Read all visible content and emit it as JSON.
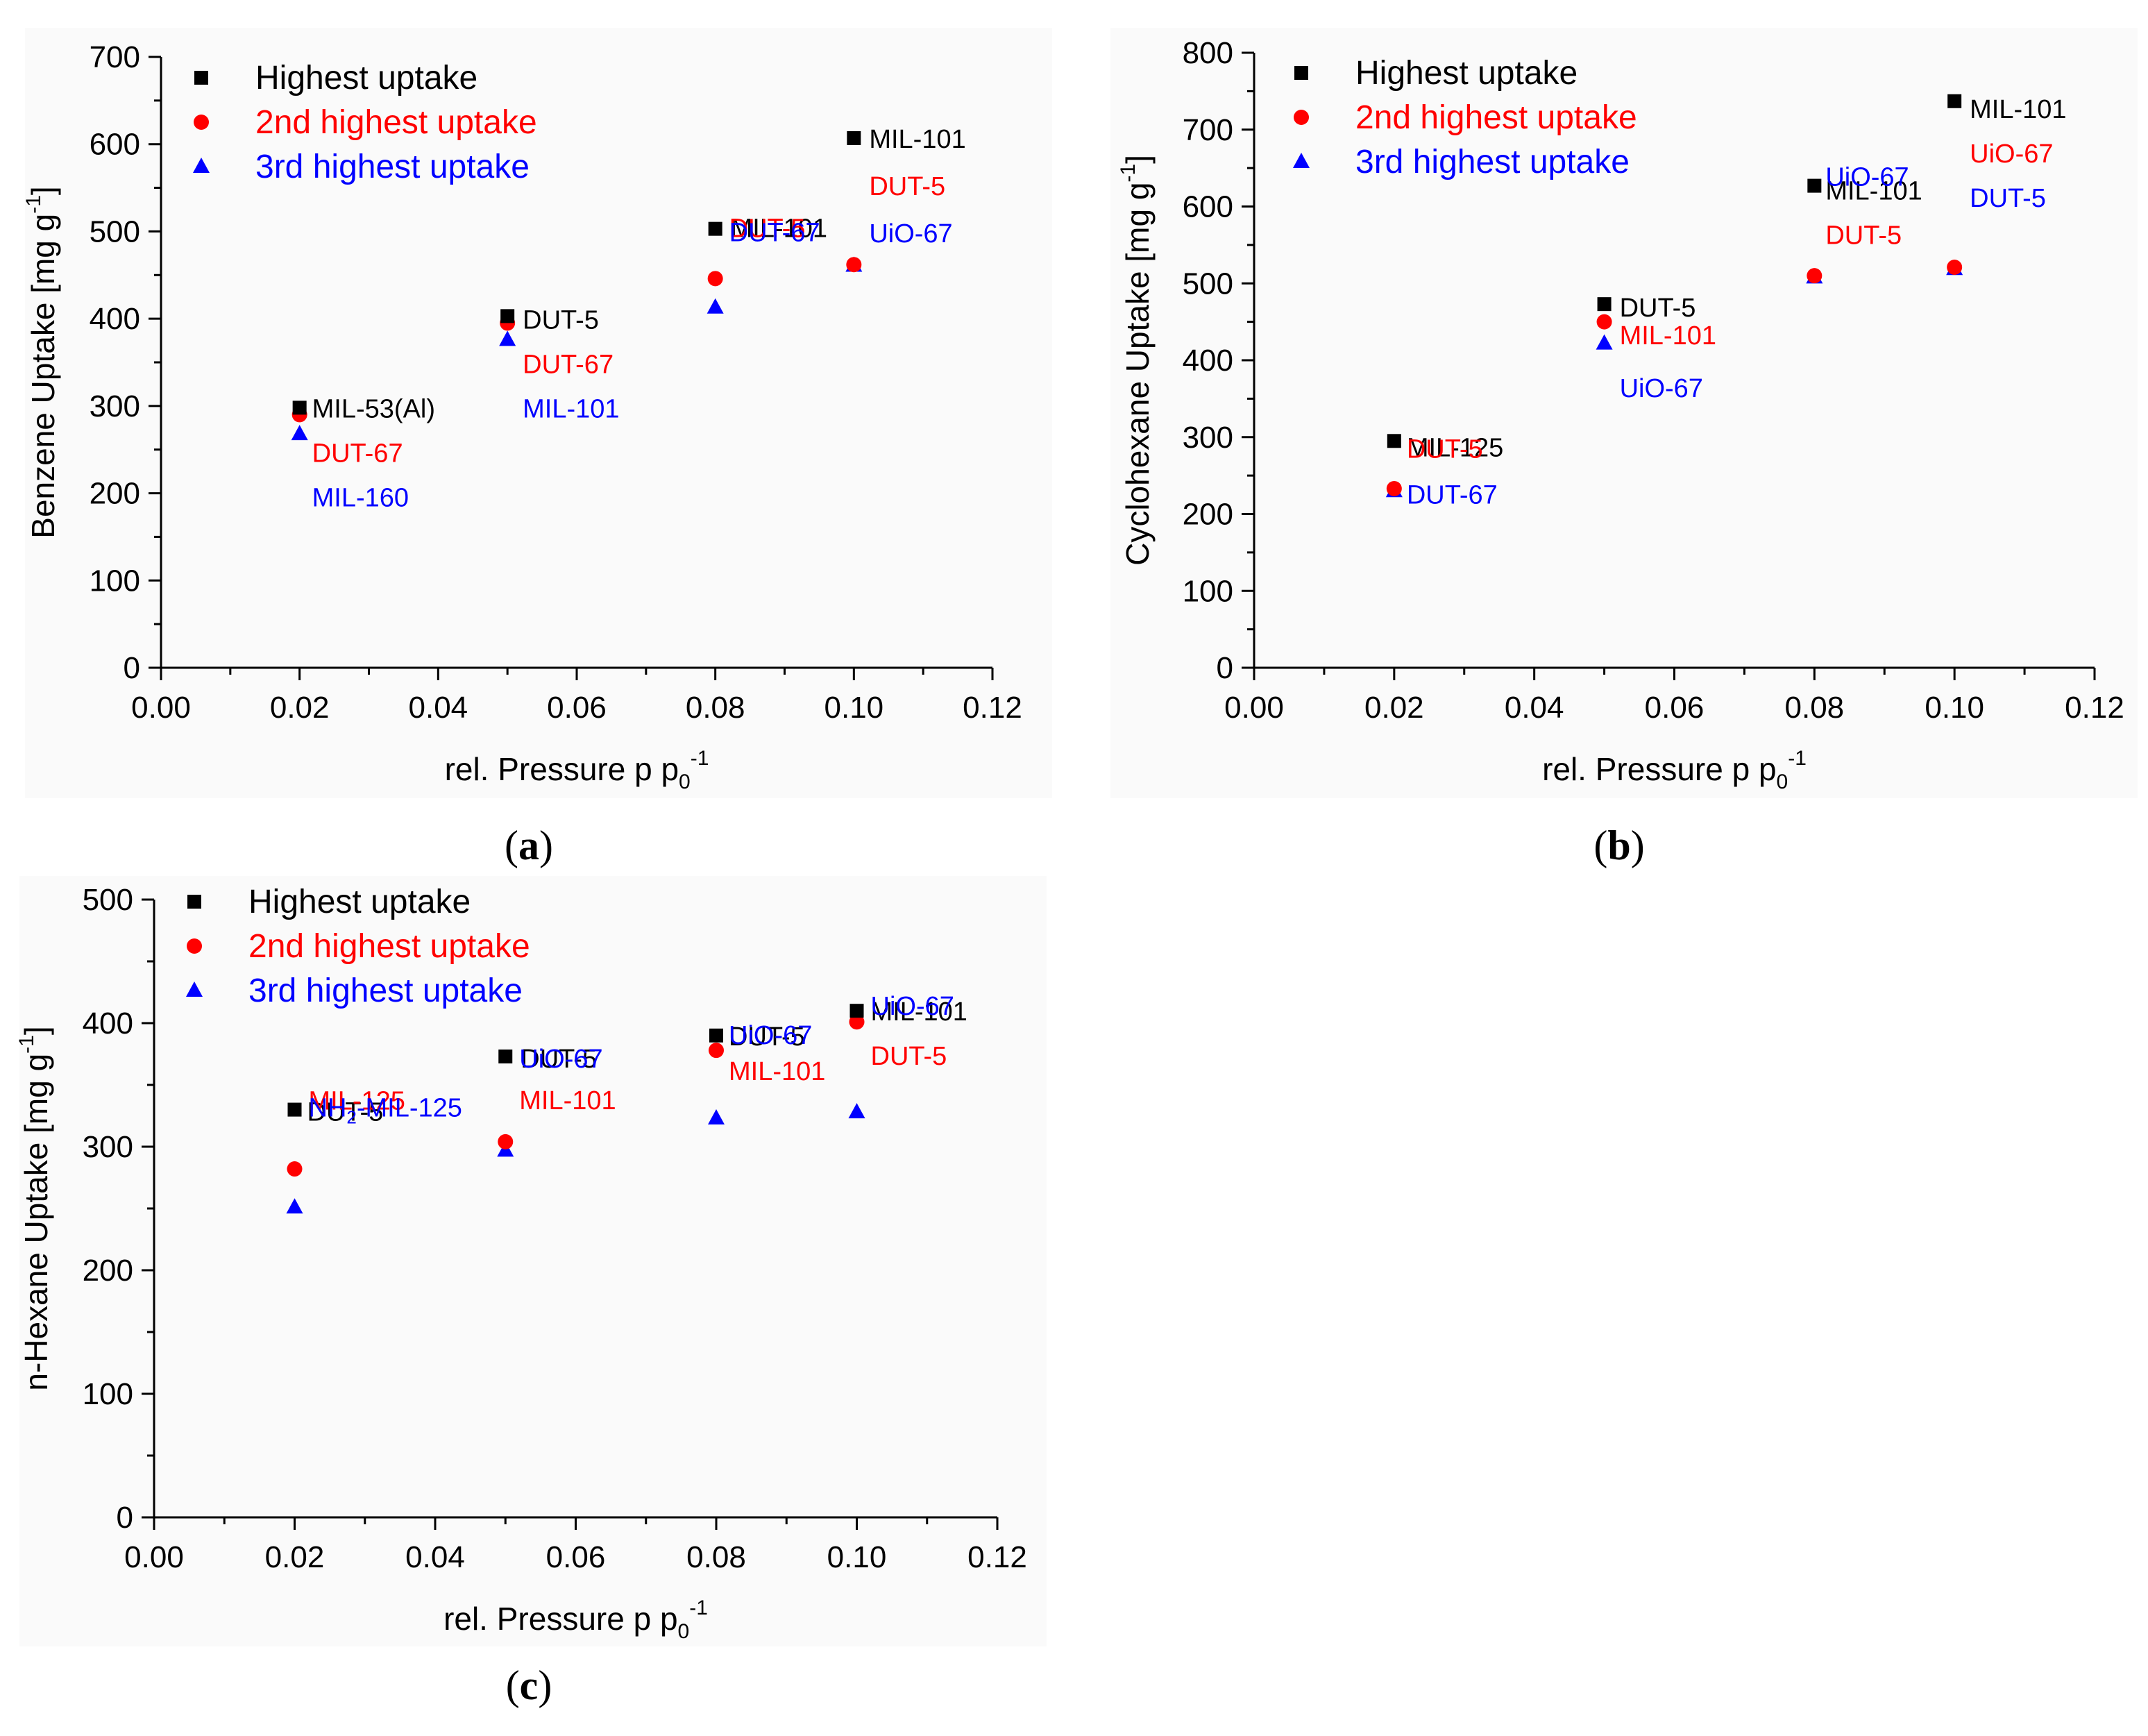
{
  "colors": {
    "highest": "#000000",
    "second": "#ff0000",
    "third": "#0000ff",
    "axis": "#000000"
  },
  "charts": [
    {
      "chart_data": {
        "type": "scatter",
        "caption": "a",
        "xlabel": "rel. Pressure p p",
        "xlabel_sub": "0",
        "xlabel_sup": "-1",
        "ylabel": "Benzene Uptake [mg g",
        "ylabel_sup": "-1",
        "ylabel_end": "]",
        "xlim": [
          0.0,
          0.12
        ],
        "ylim": [
          0,
          700
        ],
        "xticks": [
          "0.00",
          "0.02",
          "0.04",
          "0.06",
          "0.08",
          "0.10",
          "0.12"
        ],
        "yticks": [
          "0",
          "100",
          "200",
          "300",
          "400",
          "500",
          "600",
          "700"
        ],
        "legend": [
          "Highest uptake",
          "2nd highest uptake",
          "3rd highest uptake"
        ],
        "series": [
          {
            "name": "Highest uptake",
            "marker": "square",
            "points": [
              {
                "x": 0.02,
                "y": 298,
                "label": "MIL-53(Al)"
              },
              {
                "x": 0.05,
                "y": 403,
                "label": "DUT-5"
              },
              {
                "x": 0.08,
                "y": 503,
                "label": "MIL-101"
              },
              {
                "x": 0.1,
                "y": 607,
                "label": "MIL-101"
              }
            ]
          },
          {
            "name": "2nd highest uptake",
            "marker": "circle",
            "points": [
              {
                "x": 0.02,
                "y": 290,
                "label": "DUT-67"
              },
              {
                "x": 0.05,
                "y": 395,
                "label": "DUT-67"
              },
              {
                "x": 0.08,
                "y": 446,
                "label": "DUT-5"
              },
              {
                "x": 0.1,
                "y": 462,
                "label": "DUT-5"
              }
            ]
          },
          {
            "name": "3rd highest uptake",
            "marker": "triangle",
            "points": [
              {
                "x": 0.02,
                "y": 268,
                "label": "MIL-160"
              },
              {
                "x": 0.05,
                "y": 376,
                "label": "MIL-101"
              },
              {
                "x": 0.08,
                "y": 413,
                "label": "DUT-67"
              },
              {
                "x": 0.1,
                "y": 461,
                "label": "UiO-67"
              }
            ]
          }
        ]
      }
    },
    {
      "chart_data": {
        "type": "scatter",
        "caption": "b",
        "xlabel": "rel. Pressure p p",
        "xlabel_sub": "0",
        "xlabel_sup": "-1",
        "ylabel": "Cyclohexane Uptake [mg g",
        "ylabel_sup": "-1",
        "ylabel_end": "]",
        "xlim": [
          0.0,
          0.12
        ],
        "ylim": [
          0,
          800
        ],
        "xticks": [
          "0.00",
          "0.02",
          "0.04",
          "0.06",
          "0.08",
          "0.10",
          "0.12"
        ],
        "yticks": [
          "0",
          "100",
          "200",
          "300",
          "400",
          "500",
          "600",
          "700",
          "800"
        ],
        "legend": [
          "Highest uptake",
          "2nd highest uptake",
          "3rd highest uptake"
        ],
        "series": [
          {
            "name": "Highest uptake",
            "marker": "square",
            "points": [
              {
                "x": 0.02,
                "y": 295,
                "label": "MIL-125"
              },
              {
                "x": 0.05,
                "y": 473,
                "label": "DUT-5"
              },
              {
                "x": 0.08,
                "y": 627,
                "label": "MIL-101"
              },
              {
                "x": 0.1,
                "y": 737,
                "label": "MIL-101"
              }
            ]
          },
          {
            "name": "2nd highest uptake",
            "marker": "circle",
            "points": [
              {
                "x": 0.02,
                "y": 233,
                "label": "DUT-5"
              },
              {
                "x": 0.05,
                "y": 450,
                "label": "MIL-101"
              },
              {
                "x": 0.08,
                "y": 510,
                "label": "DUT-5"
              },
              {
                "x": 0.1,
                "y": 521,
                "label": "UiO-67"
              }
            ]
          },
          {
            "name": "3rd highest uptake",
            "marker": "triangle",
            "points": [
              {
                "x": 0.02,
                "y": 230,
                "label": "DUT-67"
              },
              {
                "x": 0.05,
                "y": 422,
                "label": "UiO-67"
              },
              {
                "x": 0.08,
                "y": 508,
                "label": "UiO-67"
              },
              {
                "x": 0.1,
                "y": 519,
                "label": "DUT-5"
              }
            ]
          }
        ]
      }
    },
    {
      "chart_data": {
        "type": "scatter",
        "caption": "c",
        "xlabel": "rel. Pressure p p",
        "xlabel_sub": "0",
        "xlabel_sup": "-1",
        "ylabel": "n-Hexane Uptake [mg g",
        "ylabel_sup": "-1",
        "ylabel_end": "]",
        "xlim": [
          0.0,
          0.12
        ],
        "ylim": [
          0,
          500
        ],
        "xticks": [
          "0.00",
          "0.02",
          "0.04",
          "0.06",
          "0.08",
          "0.10",
          "0.12"
        ],
        "yticks": [
          "0",
          "100",
          "200",
          "300",
          "400",
          "500"
        ],
        "legend": [
          "Highest uptake",
          "2nd highest uptake",
          "3rd highest uptake"
        ],
        "series": [
          {
            "name": "Highest uptake",
            "marker": "square",
            "points": [
              {
                "x": 0.02,
                "y": 330,
                "label": "DUT-5"
              },
              {
                "x": 0.05,
                "y": 373,
                "label": "DUT-5"
              },
              {
                "x": 0.08,
                "y": 390,
                "label": "DUT-5"
              },
              {
                "x": 0.1,
                "y": 410,
                "label": "MIL-101"
              }
            ]
          },
          {
            "name": "2nd highest uptake",
            "marker": "circle",
            "points": [
              {
                "x": 0.02,
                "y": 282,
                "label": "MIL-125"
              },
              {
                "x": 0.05,
                "y": 304,
                "label": "MIL-101"
              },
              {
                "x": 0.08,
                "y": 378,
                "label": "MIL-101"
              },
              {
                "x": 0.1,
                "y": 401,
                "label": "DUT-5"
              }
            ]
          },
          {
            "name": "3rd highest uptake",
            "marker": "triangle",
            "points": [
              {
                "x": 0.02,
                "y": 251,
                "label": "NH",
                "label_sub": "2",
                "label_rest": "-MIL-125"
              },
              {
                "x": 0.05,
                "y": 297,
                "label": "UiO-67"
              },
              {
                "x": 0.08,
                "y": 323,
                "label": "UiO-67"
              },
              {
                "x": 0.1,
                "y": 328,
                "label": "UiO-67"
              }
            ]
          }
        ]
      }
    }
  ]
}
